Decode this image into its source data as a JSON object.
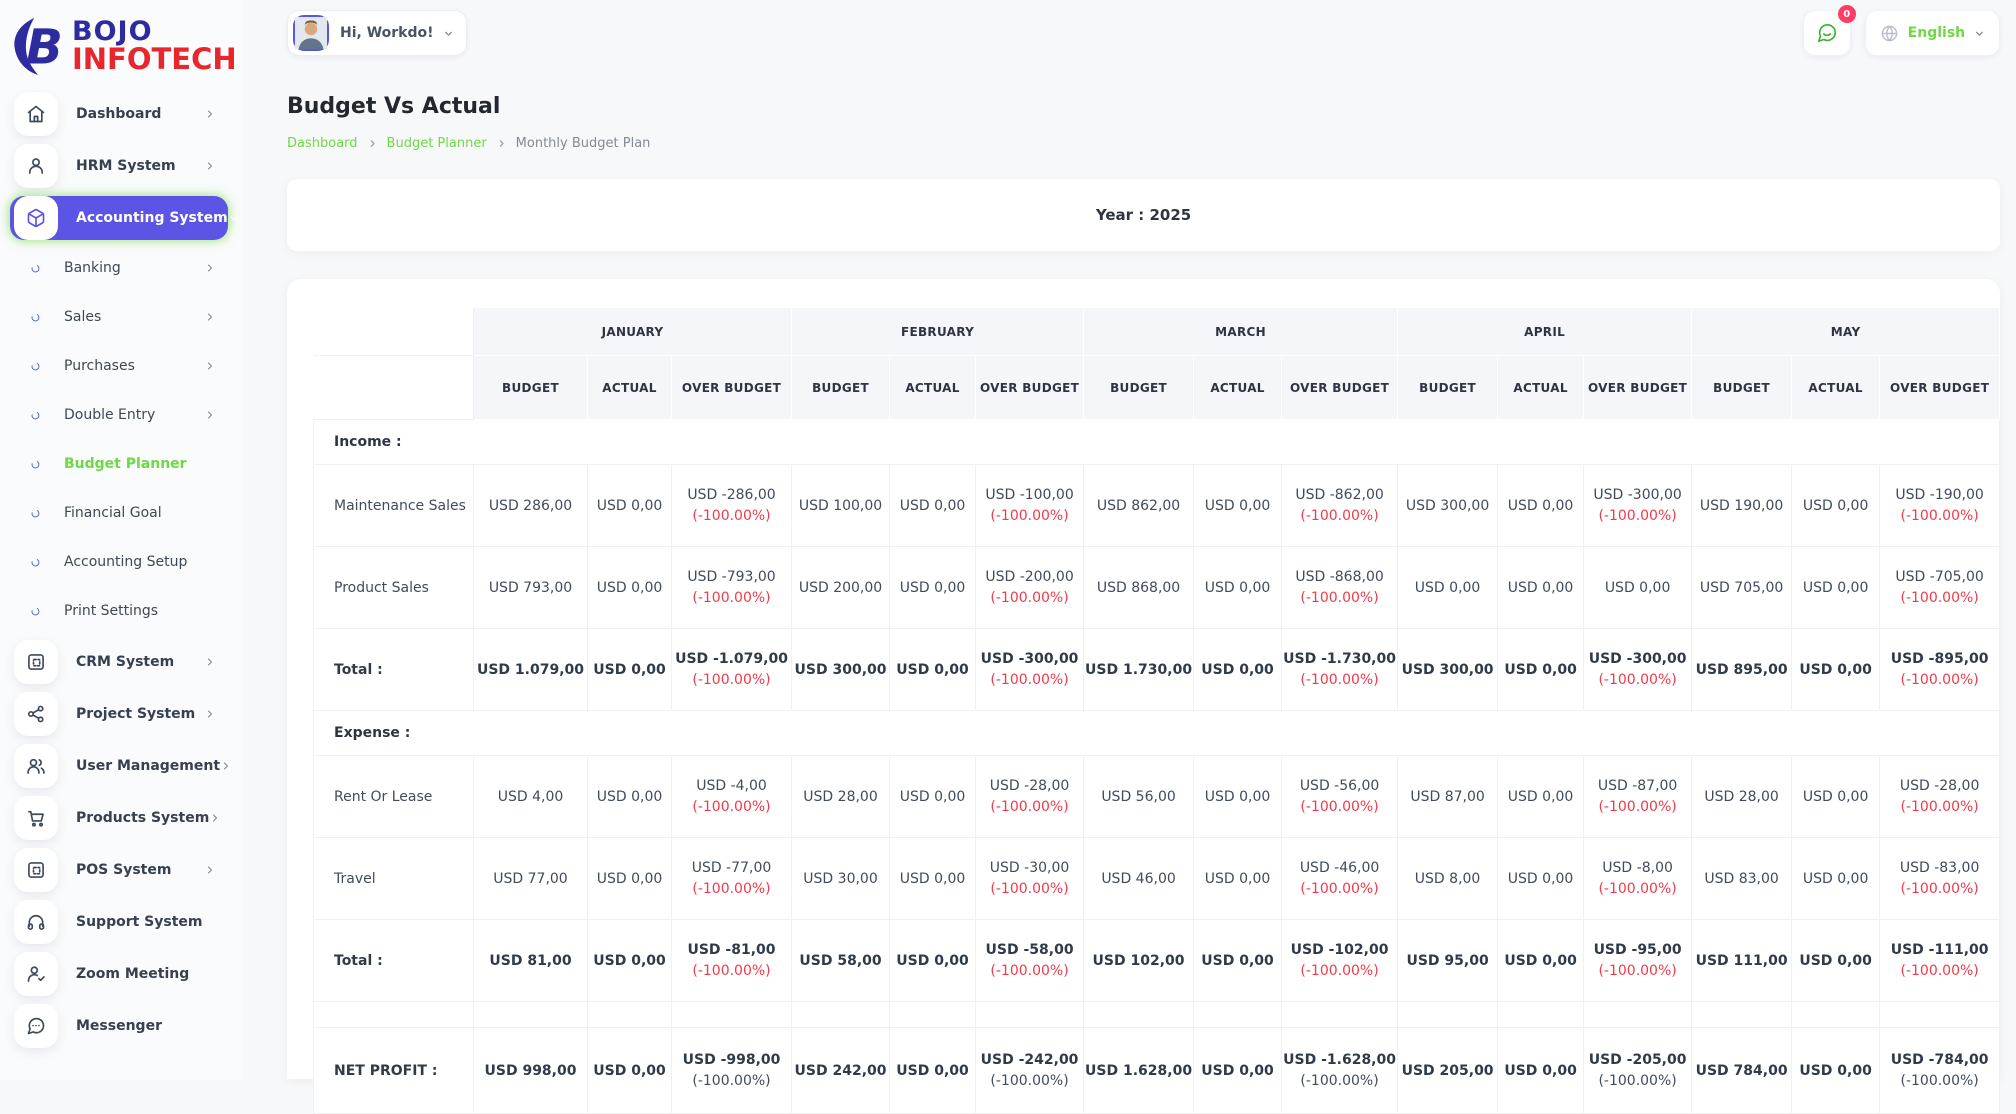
{
  "brand": {
    "line1": "BOJO",
    "line2": "INFOTECH"
  },
  "topbar": {
    "greeting": "Hi, Workdo!",
    "language": "English",
    "message_badge": "0"
  },
  "page": {
    "title": "Budget Vs Actual",
    "breadcrumb": [
      "Dashboard",
      "Budget Planner",
      "Monthly Budget Plan"
    ]
  },
  "filter": {
    "year_label": "Year : 2025"
  },
  "colors": {
    "accent_purple": "#5b54e5",
    "accent_green": "#6fd943",
    "negative_red": "#ef3b4a",
    "badge_red": "#ff3b66",
    "brand_navy": "#2d2b9e",
    "brand_red": "#e8262d"
  },
  "sidebar": {
    "items": [
      {
        "label": "Dashboard",
        "icon": "home",
        "type": "main",
        "chevron": "right"
      },
      {
        "label": "HRM System",
        "icon": "user",
        "type": "main",
        "chevron": "right"
      },
      {
        "label": "Accounting System",
        "icon": "cube",
        "type": "main",
        "chevron": "down",
        "active": true
      },
      {
        "label": "Banking",
        "type": "sub",
        "chevron": "right"
      },
      {
        "label": "Sales",
        "type": "sub",
        "chevron": "right"
      },
      {
        "label": "Purchases",
        "type": "sub",
        "chevron": "right"
      },
      {
        "label": "Double Entry",
        "type": "sub",
        "chevron": "right"
      },
      {
        "label": "Budget Planner",
        "type": "sub",
        "active": true
      },
      {
        "label": "Financial Goal",
        "type": "sub"
      },
      {
        "label": "Accounting Setup",
        "type": "sub"
      },
      {
        "label": "Print Settings",
        "type": "sub"
      },
      {
        "label": "CRM System",
        "icon": "layout",
        "type": "main",
        "chevron": "right"
      },
      {
        "label": "Project System",
        "icon": "share",
        "type": "main",
        "chevron": "right"
      },
      {
        "label": "User Management",
        "icon": "users",
        "type": "main",
        "chevron": "right"
      },
      {
        "label": "Products System",
        "icon": "cart",
        "type": "main",
        "chevron": "right"
      },
      {
        "label": "POS System",
        "icon": "pos",
        "type": "main",
        "chevron": "right"
      },
      {
        "label": "Support System",
        "icon": "headset",
        "type": "main"
      },
      {
        "label": "Zoom Meeting",
        "icon": "user-check",
        "type": "main"
      },
      {
        "label": "Messenger",
        "icon": "message",
        "type": "main"
      }
    ]
  },
  "table": {
    "months": [
      "JANUARY",
      "FEBRUARY",
      "MARCH",
      "APRIL",
      "MAY"
    ],
    "sub_headers": [
      "BUDGET",
      "ACTUAL",
      "OVER BUDGET"
    ],
    "rows": [
      {
        "type": "section",
        "label": "Income :"
      },
      {
        "type": "data",
        "label": "Maintenance Sales",
        "months": [
          [
            "USD 286,00",
            "USD 0,00",
            "USD -286,00",
            "(-100.00%)"
          ],
          [
            "USD 100,00",
            "USD 0,00",
            "USD -100,00",
            "(-100.00%)"
          ],
          [
            "USD 862,00",
            "USD 0,00",
            "USD -862,00",
            "(-100.00%)"
          ],
          [
            "USD 300,00",
            "USD 0,00",
            "USD -300,00",
            "(-100.00%)"
          ],
          [
            "USD 190,00",
            "USD 0,00",
            "USD -190,00",
            "(-100.00%)"
          ]
        ]
      },
      {
        "type": "data",
        "label": "Product Sales",
        "months": [
          [
            "USD 793,00",
            "USD 0,00",
            "USD -793,00",
            "(-100.00%)"
          ],
          [
            "USD 200,00",
            "USD 0,00",
            "USD -200,00",
            "(-100.00%)"
          ],
          [
            "USD 868,00",
            "USD 0,00",
            "USD -868,00",
            "(-100.00%)"
          ],
          [
            "USD 0,00",
            "USD 0,00",
            "USD 0,00",
            ""
          ],
          [
            "USD 705,00",
            "USD 0,00",
            "USD -705,00",
            "(-100.00%)"
          ]
        ]
      },
      {
        "type": "total",
        "label": "Total :",
        "months": [
          [
            "USD 1.079,00",
            "USD 0,00",
            "USD -1.079,00",
            "(-100.00%)"
          ],
          [
            "USD 300,00",
            "USD 0,00",
            "USD -300,00",
            "(-100.00%)"
          ],
          [
            "USD 1.730,00",
            "USD 0,00",
            "USD -1.730,00",
            "(-100.00%)"
          ],
          [
            "USD 300,00",
            "USD 0,00",
            "USD -300,00",
            "(-100.00%)"
          ],
          [
            "USD 895,00",
            "USD 0,00",
            "USD -895,00",
            "(-100.00%)"
          ]
        ]
      },
      {
        "type": "section",
        "label": "Expense :"
      },
      {
        "type": "data",
        "label": "Rent Or Lease",
        "months": [
          [
            "USD 4,00",
            "USD 0,00",
            "USD -4,00",
            "(-100.00%)"
          ],
          [
            "USD 28,00",
            "USD 0,00",
            "USD -28,00",
            "(-100.00%)"
          ],
          [
            "USD 56,00",
            "USD 0,00",
            "USD -56,00",
            "(-100.00%)"
          ],
          [
            "USD 87,00",
            "USD 0,00",
            "USD -87,00",
            "(-100.00%)"
          ],
          [
            "USD 28,00",
            "USD 0,00",
            "USD -28,00",
            "(-100.00%)"
          ]
        ]
      },
      {
        "type": "data",
        "label": "Travel",
        "months": [
          [
            "USD 77,00",
            "USD 0,00",
            "USD -77,00",
            "(-100.00%)"
          ],
          [
            "USD 30,00",
            "USD 0,00",
            "USD -30,00",
            "(-100.00%)"
          ],
          [
            "USD 46,00",
            "USD 0,00",
            "USD -46,00",
            "(-100.00%)"
          ],
          [
            "USD 8,00",
            "USD 0,00",
            "USD -8,00",
            "(-100.00%)"
          ],
          [
            "USD 83,00",
            "USD 0,00",
            "USD -83,00",
            "(-100.00%)"
          ]
        ]
      },
      {
        "type": "total",
        "label": "Total :",
        "months": [
          [
            "USD 81,00",
            "USD 0,00",
            "USD -81,00",
            "(-100.00%)"
          ],
          [
            "USD 58,00",
            "USD 0,00",
            "USD -58,00",
            "(-100.00%)"
          ],
          [
            "USD 102,00",
            "USD 0,00",
            "USD -102,00",
            "(-100.00%)"
          ],
          [
            "USD 95,00",
            "USD 0,00",
            "USD -95,00",
            "(-100.00%)"
          ],
          [
            "USD 111,00",
            "USD 0,00",
            "USD -111,00",
            "(-100.00%)"
          ]
        ]
      },
      {
        "type": "spacer"
      },
      {
        "type": "net",
        "label": "NET PROFIT :",
        "months": [
          [
            "USD 998,00",
            "USD 0,00",
            "USD -998,00",
            "(-100.00%)"
          ],
          [
            "USD 242,00",
            "USD 0,00",
            "USD -242,00",
            "(-100.00%)"
          ],
          [
            "USD 1.628,00",
            "USD 0,00",
            "USD -1.628,00",
            "(-100.00%)"
          ],
          [
            "USD 205,00",
            "USD 0,00",
            "USD -205,00",
            "(-100.00%)"
          ],
          [
            "USD 784,00",
            "USD 0,00",
            "USD -784,00",
            "(-100.00%)"
          ]
        ]
      }
    ]
  }
}
